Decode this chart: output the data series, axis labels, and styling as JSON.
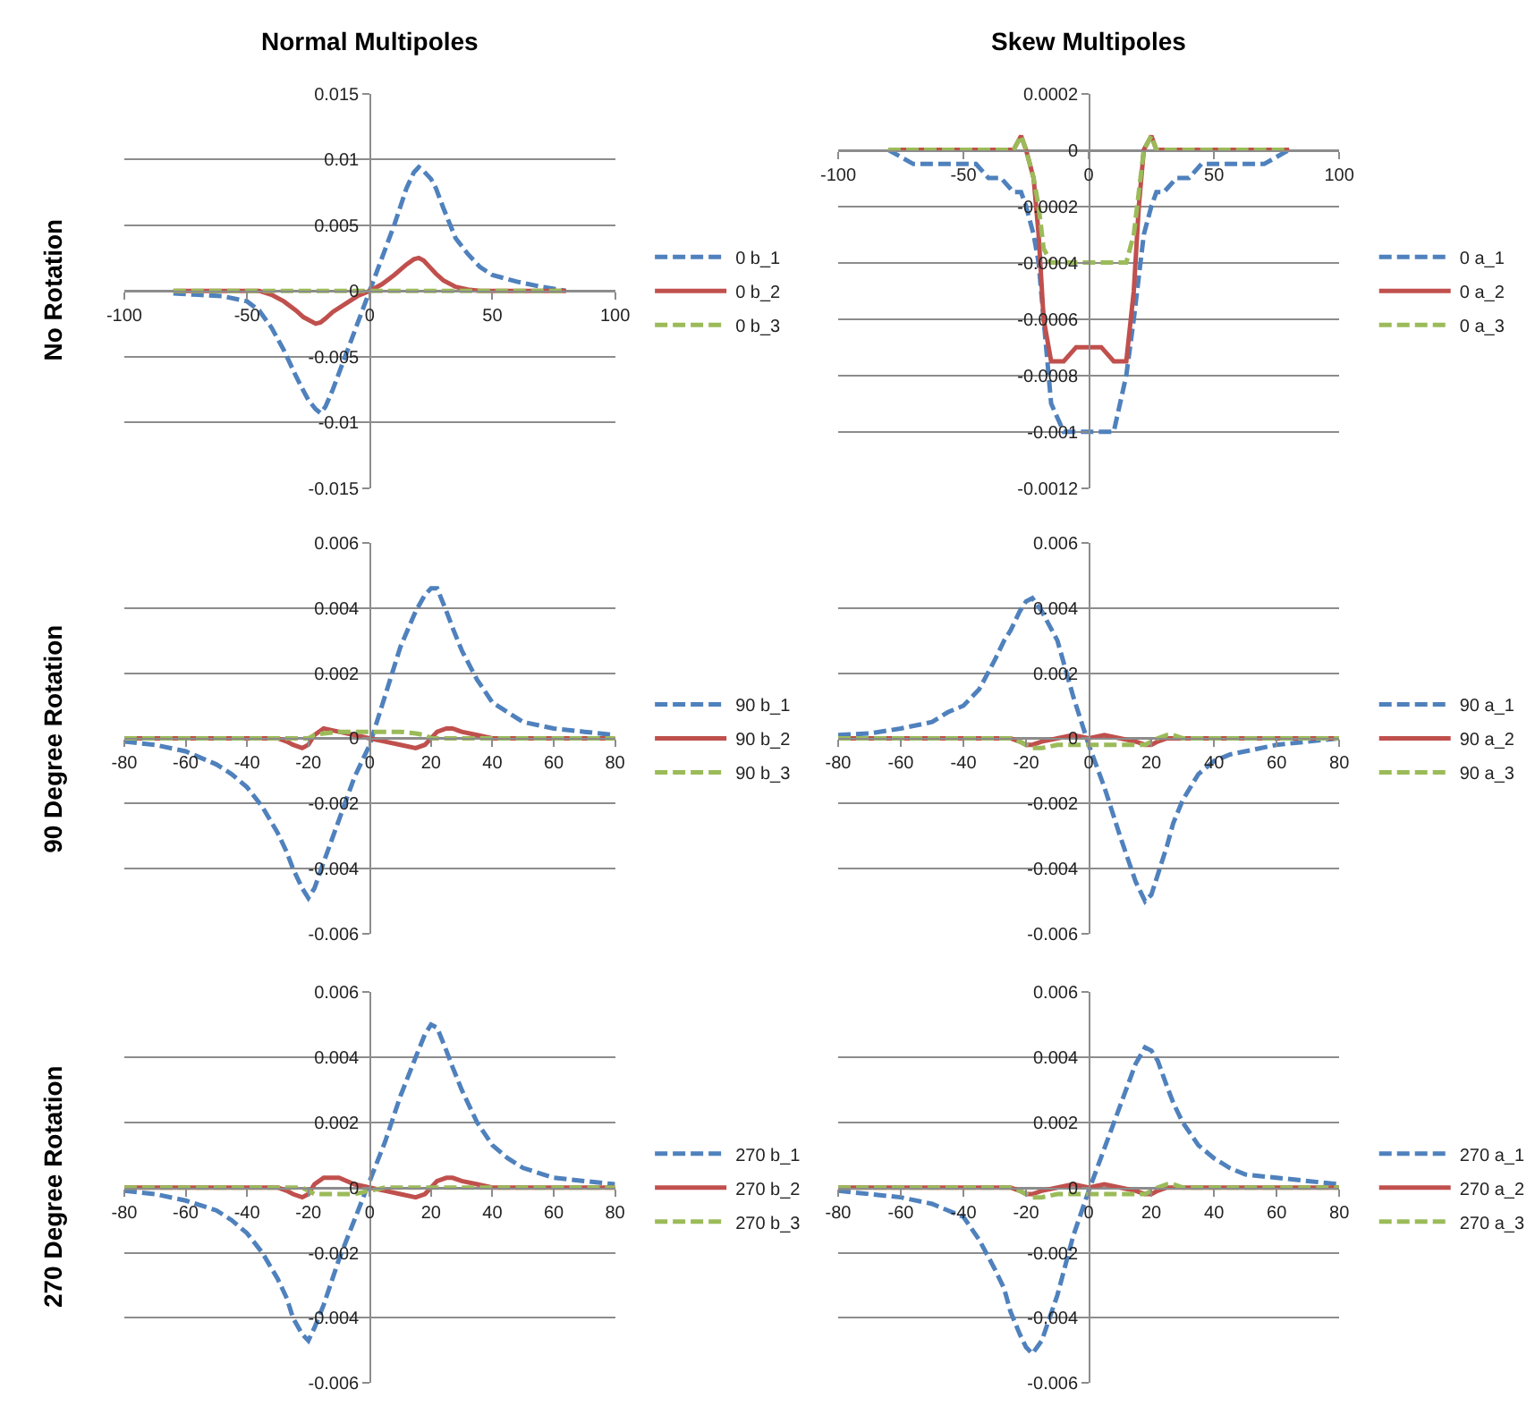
{
  "chart_data": [
    {
      "type": "line",
      "title": "Normal Multipoles",
      "ylabel": "No Rotation",
      "grid": "y",
      "legend": "right",
      "xlim": [
        -100,
        100
      ],
      "xticks": [
        -100,
        -50,
        0,
        50,
        100
      ],
      "ylim": [
        -0.015,
        0.015
      ],
      "yticks": [
        -0.015,
        -0.01,
        -0.005,
        0,
        0.005,
        0.01,
        0.015
      ],
      "x": [
        -80,
        -70,
        -60,
        -50,
        -45,
        -40,
        -35,
        -30,
        -27,
        -25,
        -22,
        -20,
        -18,
        -15,
        -10,
        -5,
        0,
        5,
        10,
        15,
        18,
        20,
        22,
        25,
        27,
        30,
        35,
        40,
        45,
        50,
        60,
        70,
        80
      ],
      "series": [
        {
          "name": "0 b_1",
          "color": "#4f81bd",
          "line_style": "dashed",
          "values": [
            -0.0002,
            -0.0003,
            -0.0004,
            -0.0008,
            -0.0015,
            -0.0028,
            -0.0045,
            -0.0065,
            -0.0076,
            -0.0083,
            -0.009,
            -0.0093,
            -0.0088,
            -0.0075,
            -0.005,
            -0.0025,
            0,
            0.0025,
            0.005,
            0.0078,
            0.009,
            0.0094,
            0.0091,
            0.0085,
            0.0078,
            0.0063,
            0.004,
            0.0028,
            0.0018,
            0.0012,
            0.0007,
            0.0003,
            0
          ]
        },
        {
          "name": "0 b_2",
          "color": "#c0504d",
          "line_style": "solid",
          "values": [
            0,
            0,
            0,
            0,
            0,
            -0.0003,
            -0.0008,
            -0.0015,
            -0.002,
            -0.0022,
            -0.0025,
            -0.0024,
            -0.0021,
            -0.0016,
            -0.001,
            -0.0004,
            0,
            0.0005,
            0.0012,
            0.002,
            0.0024,
            0.0025,
            0.0023,
            0.0017,
            0.0013,
            0.0008,
            0.0003,
            0.0001,
            0,
            0,
            0,
            0,
            0
          ]
        },
        {
          "name": "0 b_3",
          "color": "#9bbb59",
          "line_style": "dashed",
          "values": [
            0,
            0,
            0,
            0,
            0,
            0,
            0,
            0,
            0,
            0,
            0,
            0,
            0,
            0,
            0,
            0,
            0,
            0,
            0,
            0,
            0,
            0,
            0,
            0,
            0,
            0,
            0,
            0,
            0,
            0,
            0,
            0,
            0
          ]
        }
      ]
    },
    {
      "type": "line",
      "title": "Skew Multipoles",
      "grid": "y",
      "legend": "right",
      "xlim": [
        -100,
        100
      ],
      "xticks": [
        -100,
        -50,
        0,
        50,
        100
      ],
      "ylim": [
        -0.0012,
        0.0002
      ],
      "yticks": [
        -0.0012,
        -0.001,
        -0.0008,
        -0.0006,
        -0.0004,
        -0.0002,
        0,
        0.0002
      ],
      "x": [
        -80,
        -70,
        -60,
        -50,
        -45,
        -40,
        -35,
        -30,
        -27,
        -25,
        -22,
        -20,
        -18,
        -15,
        -10,
        -5,
        0,
        5,
        10,
        15,
        18,
        20,
        22,
        25,
        27,
        30,
        35,
        40,
        45,
        50,
        60,
        70,
        80
      ],
      "series": [
        {
          "name": "0 a_1",
          "color": "#4f81bd",
          "line_style": "dashed",
          "values": [
            0,
            -5e-05,
            -5e-05,
            -5e-05,
            -5e-05,
            -0.0001,
            -0.0001,
            -0.00015,
            -0.00015,
            -0.0002,
            -0.0003,
            -0.0004,
            -0.0006,
            -0.0009,
            -0.001,
            -0.001,
            -0.001,
            -0.001,
            -0.001,
            -0.0008,
            -0.0006,
            -0.00045,
            -0.0003,
            -0.0002,
            -0.00015,
            -0.00015,
            -0.0001,
            -0.0001,
            -5e-05,
            -5e-05,
            -5e-05,
            -5e-05,
            0
          ]
        },
        {
          "name": "0 a_2",
          "color": "#c0504d",
          "line_style": "solid",
          "values": [
            0,
            0,
            0,
            0,
            0,
            0,
            0,
            0,
            5e-05,
            0,
            -0.0001,
            -0.0003,
            -0.0006,
            -0.00075,
            -0.00075,
            -0.0007,
            -0.0007,
            -0.0007,
            -0.00075,
            -0.00075,
            -0.0005,
            -0.0002,
            0,
            5e-05,
            0,
            0,
            0,
            0,
            0,
            0,
            0,
            0,
            0
          ]
        },
        {
          "name": "0 a_3",
          "color": "#9bbb59",
          "line_style": "dashed",
          "values": [
            0,
            0,
            0,
            0,
            0,
            0,
            0,
            0,
            5e-05,
            0,
            -0.0001,
            -0.0002,
            -0.00035,
            -0.0004,
            -0.0004,
            -0.0004,
            -0.0004,
            -0.0004,
            -0.0004,
            -0.0004,
            -0.0003,
            -0.00015,
            0,
            5e-05,
            0,
            0,
            0,
            0,
            0,
            0,
            0,
            0,
            0
          ]
        }
      ]
    },
    {
      "type": "line",
      "ylabel": "90 Degree Rotation",
      "grid": "y",
      "legend": "right",
      "xlim": [
        -80,
        80
      ],
      "xticks": [
        -80,
        -60,
        -40,
        -20,
        0,
        20,
        40,
        60,
        80
      ],
      "ylim": [
        -0.006,
        0.006
      ],
      "yticks": [
        -0.006,
        -0.004,
        -0.002,
        0,
        0.002,
        0.004,
        0.006
      ],
      "x": [
        -80,
        -70,
        -60,
        -50,
        -45,
        -40,
        -35,
        -30,
        -27,
        -25,
        -22,
        -20,
        -18,
        -15,
        -10,
        -5,
        0,
        5,
        10,
        15,
        18,
        20,
        22,
        25,
        27,
        30,
        35,
        40,
        45,
        50,
        60,
        70,
        80
      ],
      "series": [
        {
          "name": "90 b_1",
          "color": "#4f81bd",
          "line_style": "dashed",
          "values": [
            -0.0001,
            -0.0002,
            -0.0004,
            -0.0008,
            -0.0011,
            -0.0015,
            -0.0021,
            -0.0029,
            -0.0035,
            -0.004,
            -0.0046,
            -0.0049,
            -0.0046,
            -0.0038,
            -0.0025,
            -0.0012,
            -0.0002,
            0.0013,
            0.0028,
            0.0039,
            0.0044,
            0.0046,
            0.0046,
            0.0039,
            0.0034,
            0.0027,
            0.0018,
            0.0011,
            0.0008,
            0.0005,
            0.0003,
            0.0002,
            0.0001
          ]
        },
        {
          "name": "90 b_2",
          "color": "#c0504d",
          "line_style": "solid",
          "values": [
            0,
            0,
            0,
            0,
            0,
            0,
            0,
            0,
            -0.0001,
            -0.0002,
            -0.0003,
            -0.0002,
            0.0001,
            0.0003,
            0.0002,
            0.0001,
            0,
            -0.0001,
            -0.0002,
            -0.0003,
            -0.0002,
            0,
            0.0002,
            0.0003,
            0.0003,
            0.0002,
            0.0001,
            0,
            0,
            0,
            0,
            0,
            0
          ]
        },
        {
          "name": "90 b_3",
          "color": "#9bbb59",
          "line_style": "dashed",
          "values": [
            0,
            0,
            0,
            0,
            0,
            0,
            0,
            0,
            0,
            0,
            0,
            0,
            0.0001,
            0.00015,
            0.0002,
            0.0002,
            0.0002,
            0.0002,
            0.0002,
            0.00015,
            0.0001,
            0,
            0,
            0,
            0,
            0,
            0,
            0,
            0,
            0,
            0,
            0,
            0
          ]
        }
      ]
    },
    {
      "type": "line",
      "grid": "y",
      "legend": "right",
      "xlim": [
        -80,
        80
      ],
      "xticks": [
        -80,
        -60,
        -40,
        -20,
        0,
        20,
        40,
        60,
        80
      ],
      "ylim": [
        -0.006,
        0.006
      ],
      "yticks": [
        -0.006,
        -0.004,
        -0.002,
        0,
        0.002,
        0.004,
        0.006
      ],
      "x": [
        -80,
        -70,
        -60,
        -50,
        -45,
        -40,
        -35,
        -30,
        -27,
        -25,
        -22,
        -20,
        -18,
        -15,
        -10,
        -5,
        0,
        5,
        10,
        15,
        18,
        20,
        22,
        25,
        27,
        30,
        35,
        40,
        45,
        50,
        60,
        70,
        80
      ],
      "series": [
        {
          "name": "90 a_1",
          "color": "#4f81bd",
          "line_style": "dashed",
          "values": [
            0.0001,
            0.00015,
            0.0003,
            0.0005,
            0.0008,
            0.001,
            0.0015,
            0.0024,
            0.003,
            0.0033,
            0.0039,
            0.0042,
            0.0043,
            0.0039,
            0.003,
            0.0013,
            -0.0002,
            -0.0015,
            -0.003,
            -0.0044,
            -0.005,
            -0.0048,
            -0.0042,
            -0.0033,
            -0.0026,
            -0.0019,
            -0.0011,
            -0.0007,
            -0.0005,
            -0.0004,
            -0.0002,
            -0.0001,
            0
          ]
        },
        {
          "name": "90 a_2",
          "color": "#c0504d",
          "line_style": "solid",
          "values": [
            0,
            0,
            0,
            0,
            0,
            0,
            0,
            0,
            0,
            0,
            -0.0001,
            -0.0002,
            -0.0002,
            -0.0001,
            0,
            0.0001,
            0,
            0.0001,
            0,
            -0.0001,
            -0.0002,
            -0.0002,
            -0.0001,
            0,
            0,
            0,
            0,
            0,
            0,
            0,
            0,
            0,
            0
          ]
        },
        {
          "name": "90 a_3",
          "color": "#9bbb59",
          "line_style": "dashed",
          "values": [
            0,
            0,
            0,
            0,
            0,
            0,
            0,
            0,
            0,
            0,
            -0.0001,
            -0.0002,
            -0.0003,
            -0.0003,
            -0.0002,
            -0.0002,
            -0.0002,
            -0.0002,
            -0.0002,
            -0.0002,
            -0.0002,
            -0.0001,
            0,
            0.0001,
            0.0001,
            0,
            0,
            0,
            0,
            0,
            0,
            0,
            0
          ]
        }
      ]
    },
    {
      "type": "line",
      "ylabel": "270 Degree Rotation",
      "grid": "y",
      "legend": "right",
      "xlim": [
        -80,
        80
      ],
      "xticks": [
        -80,
        -60,
        -40,
        -20,
        0,
        20,
        40,
        60,
        80
      ],
      "ylim": [
        -0.006,
        0.006
      ],
      "yticks": [
        -0.006,
        -0.004,
        -0.002,
        0,
        0.002,
        0.004,
        0.006
      ],
      "x": [
        -80,
        -70,
        -60,
        -50,
        -45,
        -40,
        -35,
        -30,
        -27,
        -25,
        -22,
        -20,
        -18,
        -15,
        -10,
        -5,
        0,
        5,
        10,
        15,
        18,
        20,
        22,
        25,
        27,
        30,
        35,
        40,
        45,
        50,
        60,
        70,
        80
      ],
      "series": [
        {
          "name": "270 b_1",
          "color": "#4f81bd",
          "line_style": "dashed",
          "values": [
            -0.0001,
            -0.0002,
            -0.0004,
            -0.0007,
            -0.001,
            -0.0014,
            -0.002,
            -0.0028,
            -0.0034,
            -0.004,
            -0.0045,
            -0.0047,
            -0.0043,
            -0.0036,
            -0.0022,
            -0.001,
            0.0002,
            0.0014,
            0.0028,
            0.004,
            0.0047,
            0.005,
            0.0049,
            0.0042,
            0.0037,
            0.003,
            0.002,
            0.0013,
            0.0009,
            0.0006,
            0.0003,
            0.0002,
            0.0001
          ]
        },
        {
          "name": "270 b_2",
          "color": "#c0504d",
          "line_style": "solid",
          "values": [
            0,
            0,
            0,
            0,
            0,
            0,
            0,
            0,
            -0.0001,
            -0.0002,
            -0.0003,
            -0.0002,
            0.0001,
            0.0003,
            0.0003,
            0.0001,
            0,
            -0.0001,
            -0.0002,
            -0.0003,
            -0.0002,
            0,
            0.0002,
            0.0003,
            0.0003,
            0.0002,
            0.0001,
            0,
            0,
            0,
            0,
            0,
            0
          ]
        },
        {
          "name": "270 b_3",
          "color": "#9bbb59",
          "line_style": "dashed",
          "values": [
            0,
            0,
            0,
            0,
            0,
            0,
            0,
            0,
            0,
            0,
            0,
            -0.0001,
            -0.0002,
            -0.0002,
            -0.0002,
            -0.0002,
            -0.0001,
            0,
            0,
            0,
            0,
            0,
            0,
            0,
            0,
            0,
            0,
            0,
            0,
            0,
            0,
            0,
            0
          ]
        }
      ]
    },
    {
      "type": "line",
      "grid": "y",
      "legend": "right",
      "xlim": [
        -80,
        80
      ],
      "xticks": [
        -80,
        -60,
        -40,
        -20,
        0,
        20,
        40,
        60,
        80
      ],
      "ylim": [
        -0.006,
        0.006
      ],
      "yticks": [
        -0.006,
        -0.004,
        -0.002,
        0,
        0.002,
        0.004,
        0.006
      ],
      "x": [
        -80,
        -70,
        -60,
        -50,
        -45,
        -40,
        -35,
        -30,
        -27,
        -25,
        -22,
        -20,
        -18,
        -15,
        -10,
        -5,
        0,
        5,
        10,
        15,
        18,
        20,
        22,
        25,
        27,
        30,
        35,
        40,
        45,
        50,
        60,
        70,
        80
      ],
      "series": [
        {
          "name": "270 a_1",
          "color": "#4f81bd",
          "line_style": "dashed",
          "values": [
            -0.0001,
            -0.0002,
            -0.0003,
            -0.0005,
            -0.0007,
            -0.0009,
            -0.0016,
            -0.0025,
            -0.0031,
            -0.0038,
            -0.0045,
            -0.0049,
            -0.0051,
            -0.0047,
            -0.0033,
            -0.0015,
            -0.0001,
            0.0012,
            0.0025,
            0.0038,
            0.0043,
            0.0042,
            0.0039,
            0.0031,
            0.0026,
            0.002,
            0.0013,
            0.0009,
            0.0006,
            0.0004,
            0.0003,
            0.0002,
            0.0001
          ]
        },
        {
          "name": "270 a_2",
          "color": "#c0504d",
          "line_style": "solid",
          "values": [
            0,
            0,
            0,
            0,
            0,
            0,
            0,
            0,
            0,
            0,
            -0.0001,
            -0.0002,
            -0.0002,
            -0.0001,
            0,
            0.0001,
            0,
            0.0001,
            0,
            -0.0001,
            -0.0002,
            -0.0002,
            -0.0001,
            0,
            0,
            0,
            0,
            0,
            0,
            0,
            0,
            0,
            0
          ]
        },
        {
          "name": "270 a_3",
          "color": "#9bbb59",
          "line_style": "dashed",
          "values": [
            0,
            0,
            0,
            0,
            0,
            0,
            0,
            0,
            0,
            0,
            -0.0001,
            -0.0002,
            -0.0003,
            -0.0003,
            -0.0002,
            -0.0002,
            -0.0002,
            -0.0002,
            -0.0002,
            -0.0002,
            -0.0002,
            -0.0001,
            0,
            0.0001,
            0.0001,
            0,
            0,
            0,
            0,
            0,
            0,
            0,
            0
          ]
        }
      ]
    }
  ]
}
